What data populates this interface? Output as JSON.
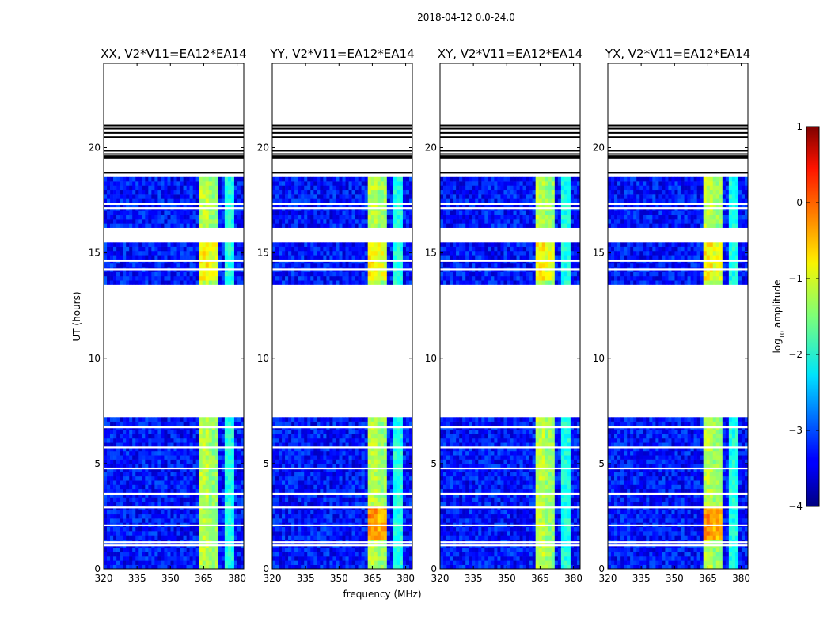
{
  "chart_data": {
    "type": "heatmap",
    "suptitle": "2018-04-12 0.0-24.0",
    "xlabel": "frequency (MHz)",
    "ylabel": "UT (hours)",
    "xlim": [
      320,
      383
    ],
    "ylim": [
      0,
      24
    ],
    "xticks": [
      320,
      335,
      350,
      365,
      380
    ],
    "yticks": [
      0,
      5,
      10,
      15,
      20
    ],
    "panels": [
      {
        "title": "XX, V2*V11=EA12*EA14",
        "id": "xx"
      },
      {
        "title": "YY, V2*V11=EA12*EA14",
        "id": "yy"
      },
      {
        "title": "XY, V2*V11=EA12*EA14",
        "id": "xy"
      },
      {
        "title": "YX, V2*V11=EA12*EA14",
        "id": "yx"
      }
    ],
    "colorbar": {
      "label": "log10 amplitude",
      "label_main": "log",
      "label_sub": "10",
      "label_rest": " amplitude",
      "range": [
        -4,
        1
      ],
      "ticks": [
        1,
        0,
        -1,
        -2,
        -3,
        -4
      ],
      "colormap": "jet"
    },
    "data_blocks_hours": [
      [
        0.0,
        7.2
      ],
      [
        13.5,
        15.5
      ],
      [
        16.2,
        18.6
      ]
    ],
    "flagged_gaps_hours": [
      1.1,
      1.25,
      2.05,
      2.9,
      3.55,
      4.75,
      5.75,
      6.7,
      14.2,
      14.6,
      17.1,
      17.3
    ],
    "flag_lines_hours": [
      18.8,
      19.5,
      19.6,
      19.7,
      19.85,
      20.5,
      20.7,
      20.9,
      21.05
    ],
    "rfi_bands_mhz": [
      {
        "f0": 363.0,
        "f1": 367.5,
        "level": -1.2
      },
      {
        "f0": 367.8,
        "f1": 372.0,
        "level": -1.4
      },
      {
        "f0": 374.5,
        "f1": 379.0,
        "level": -2.0
      }
    ],
    "background_level": -3.3
  }
}
